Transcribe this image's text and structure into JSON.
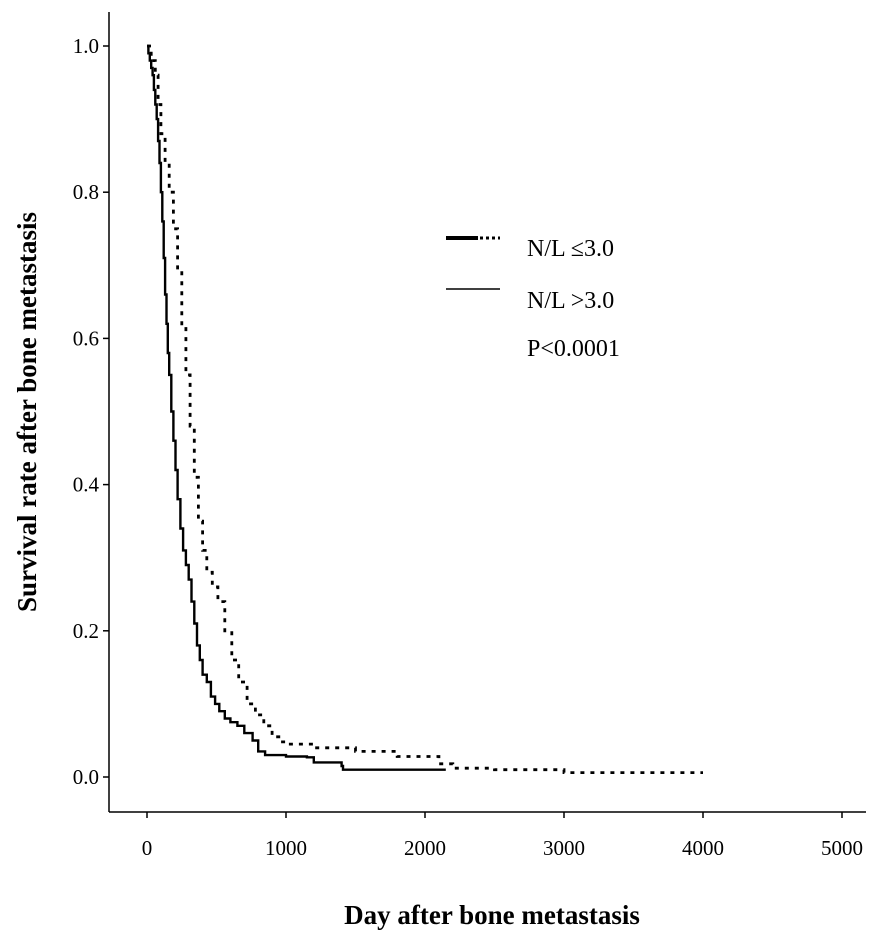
{
  "chart_data": {
    "type": "line",
    "xlabel": "Day after bone metastasis",
    "ylabel": "Survival rate after bone metastasis",
    "xlim": [
      0,
      5000
    ],
    "ylim": [
      0.0,
      1.0
    ],
    "xticks": [
      "0",
      "1000",
      "2000",
      "3000",
      "4000",
      "5000"
    ],
    "yticks": [
      "0.0",
      "0.2",
      "0.4",
      "0.6",
      "0.8",
      "1.0"
    ],
    "grid": false,
    "legend_position": "top-right",
    "annotation": "P<0.0001",
    "series": [
      {
        "name": "N/L ≤3.0",
        "style": "dotted",
        "color": "#000000",
        "points": [
          [
            0,
            1.0
          ],
          [
            30,
            0.98
          ],
          [
            60,
            0.96
          ],
          [
            80,
            0.92
          ],
          [
            100,
            0.88
          ],
          [
            130,
            0.84
          ],
          [
            160,
            0.8
          ],
          [
            190,
            0.75
          ],
          [
            220,
            0.69
          ],
          [
            250,
            0.62
          ],
          [
            280,
            0.55
          ],
          [
            310,
            0.48
          ],
          [
            340,
            0.41
          ],
          [
            370,
            0.35
          ],
          [
            400,
            0.31
          ],
          [
            430,
            0.28
          ],
          [
            470,
            0.26
          ],
          [
            510,
            0.24
          ],
          [
            560,
            0.2
          ],
          [
            610,
            0.16
          ],
          [
            660,
            0.13
          ],
          [
            720,
            0.1
          ],
          [
            780,
            0.085
          ],
          [
            840,
            0.07
          ],
          [
            900,
            0.055
          ],
          [
            960,
            0.048
          ],
          [
            1000,
            0.045
          ],
          [
            1200,
            0.04
          ],
          [
            1500,
            0.035
          ],
          [
            1800,
            0.028
          ],
          [
            2100,
            0.018
          ],
          [
            2200,
            0.012
          ],
          [
            2500,
            0.01
          ],
          [
            2800,
            0.01
          ],
          [
            3000,
            0.006
          ],
          [
            4000,
            0.006
          ]
        ]
      },
      {
        "name": "N/L >3.0",
        "style": "solid",
        "color": "#000000",
        "points": [
          [
            0,
            1.0
          ],
          [
            10,
            0.99
          ],
          [
            20,
            0.98
          ],
          [
            30,
            0.97
          ],
          [
            40,
            0.96
          ],
          [
            50,
            0.94
          ],
          [
            60,
            0.92
          ],
          [
            70,
            0.9
          ],
          [
            80,
            0.87
          ],
          [
            90,
            0.84
          ],
          [
            100,
            0.8
          ],
          [
            110,
            0.76
          ],
          [
            120,
            0.71
          ],
          [
            130,
            0.66
          ],
          [
            140,
            0.62
          ],
          [
            150,
            0.58
          ],
          [
            160,
            0.55
          ],
          [
            175,
            0.5
          ],
          [
            190,
            0.46
          ],
          [
            205,
            0.42
          ],
          [
            220,
            0.38
          ],
          [
            240,
            0.34
          ],
          [
            260,
            0.31
          ],
          [
            280,
            0.29
          ],
          [
            300,
            0.27
          ],
          [
            320,
            0.24
          ],
          [
            340,
            0.21
          ],
          [
            360,
            0.18
          ],
          [
            380,
            0.16
          ],
          [
            400,
            0.14
          ],
          [
            430,
            0.13
          ],
          [
            460,
            0.11
          ],
          [
            490,
            0.1
          ],
          [
            520,
            0.09
          ],
          [
            560,
            0.08
          ],
          [
            600,
            0.075
          ],
          [
            650,
            0.07
          ],
          [
            700,
            0.06
          ],
          [
            760,
            0.05
          ],
          [
            800,
            0.035
          ],
          [
            850,
            0.03
          ],
          [
            1000,
            0.028
          ],
          [
            1150,
            0.027
          ],
          [
            1200,
            0.02
          ],
          [
            1400,
            0.015
          ],
          [
            1410,
            0.01
          ],
          [
            1700,
            0.01
          ],
          [
            2000,
            0.01
          ],
          [
            2150,
            0.01
          ]
        ]
      }
    ]
  }
}
